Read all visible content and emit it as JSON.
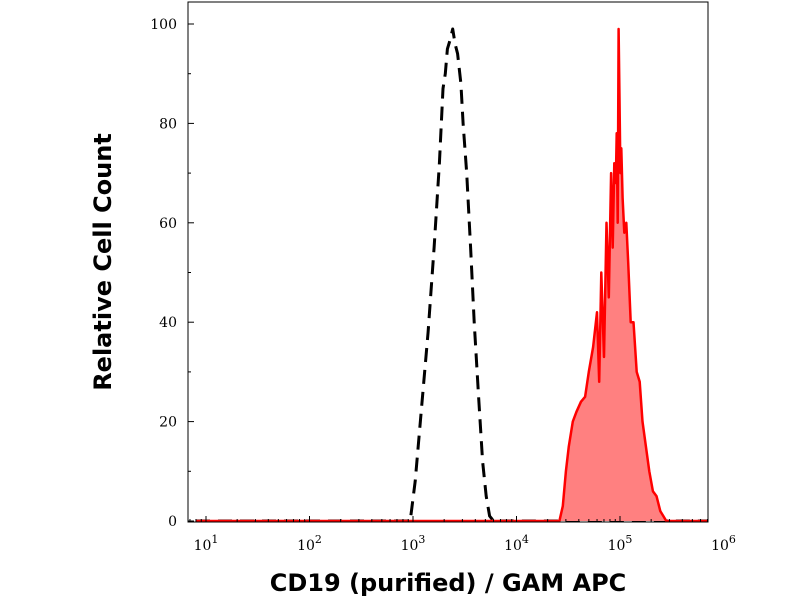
{
  "chart_data": {
    "type": "area",
    "title": "",
    "xlabel": "CD19 (purified) / GAM APC",
    "ylabel": "Relative Cell Count",
    "x_scale": "log",
    "xlim": [
      10,
      1000000
    ],
    "ylim": [
      0,
      100
    ],
    "x_ticks": [
      {
        "value": 10,
        "base": "10",
        "exp": "1"
      },
      {
        "value": 100,
        "base": "10",
        "exp": "2"
      },
      {
        "value": 1000,
        "base": "10",
        "exp": "3"
      },
      {
        "value": 10000,
        "base": "10",
        "exp": "4"
      },
      {
        "value": 100000,
        "base": "10",
        "exp": "5"
      },
      {
        "value": 1000000,
        "base": "10",
        "exp": "6"
      }
    ],
    "y_ticks": [
      0,
      20,
      40,
      60,
      80,
      100
    ],
    "grid": false,
    "legend": "none",
    "series": [
      {
        "style": "dashed",
        "color": "#000000",
        "fill": "none",
        "x": [
          8,
          600,
          940,
          1050,
          1200,
          1400,
          1600,
          1800,
          1950,
          2050,
          2150,
          2300,
          2420,
          2550,
          2700,
          2900,
          3050,
          3300,
          3600,
          3900,
          4300,
          4700,
          5100,
          5500,
          6000,
          1000000
        ],
        "y": [
          0,
          0,
          0,
          8,
          22,
          38,
          55,
          72,
          87,
          90,
          95,
          97,
          99,
          96,
          94,
          88,
          80,
          70,
          55,
          40,
          25,
          12,
          5,
          1,
          0,
          0
        ]
      },
      {
        "style": "solid",
        "color": "#ff0000",
        "fill": "#ff8080",
        "x": [
          8,
          20000,
          26000,
          28000,
          30000,
          32000,
          35000,
          38000,
          42000,
          46000,
          50000,
          55000,
          60000,
          63000,
          66000,
          70000,
          74000,
          78000,
          82000,
          85000,
          88000,
          91000,
          93000,
          95000,
          97000,
          99000,
          101000,
          103000,
          106000,
          110000,
          115000,
          120000,
          127000,
          135000,
          145000,
          155000,
          165000,
          178000,
          192000,
          208000,
          225000,
          245000,
          262000,
          280000,
          1000000
        ],
        "y": [
          0,
          0,
          0,
          3,
          10,
          15,
          20,
          22,
          24,
          25,
          30,
          35,
          42,
          28,
          50,
          33,
          60,
          45,
          70,
          55,
          72,
          68,
          78,
          60,
          99,
          85,
          70,
          75,
          65,
          58,
          60,
          52,
          40,
          40,
          30,
          28,
          20,
          15,
          10,
          6,
          5,
          2,
          1,
          0,
          0
        ]
      }
    ]
  }
}
